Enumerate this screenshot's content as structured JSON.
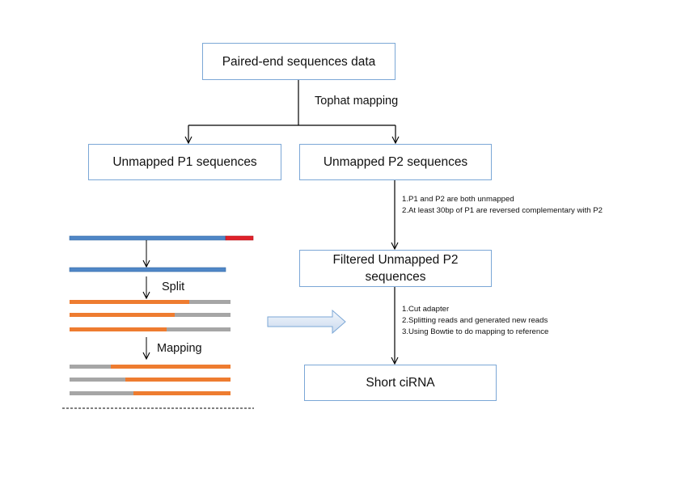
{
  "nodes": {
    "paired_end": "Paired-end sequences data",
    "unmapped_p1": "Unmapped P1 sequences",
    "unmapped_p2": "Unmapped P2 sequences",
    "filtered_p2": "Filtered Unmapped P2 sequences",
    "short_cirna": "Short ciRNA"
  },
  "edge_labels": {
    "tophat": "Tophat mapping"
  },
  "filter_notes": [
    "1.P1 and P2 are both unmapped",
    "2.At least 30bp of P1 are reversed complementary with P2"
  ],
  "processing_notes": [
    "1.Cut adapter",
    "2.Splitting reads and generated new reads",
    "3.Using Bowtie to do mapping to reference"
  ],
  "schematic": {
    "split_label": "Split",
    "mapping_label": "Mapping"
  },
  "colors": {
    "box_border": "#7ba7d6",
    "read_blue": "#4f86c6",
    "adapter_red": "#e0202a",
    "read_orange": "#ee7c30",
    "read_grey": "#a6a6a6",
    "block_arrow_fill": "#dbe6f4",
    "block_arrow_stroke": "#7ba7d6"
  }
}
